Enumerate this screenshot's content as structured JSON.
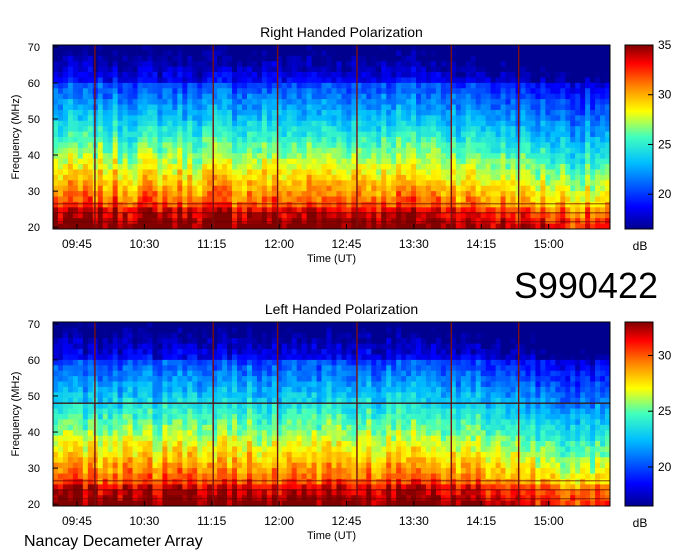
{
  "station_label": "Nancay Decameter Array",
  "event_id": "S990422",
  "chart_data": [
    {
      "type": "heatmap",
      "title": "Right Handed Polarization",
      "xlabel": "Time (UT)",
      "ylabel": "Frequency (MHz)",
      "x_ticks": [
        "09:45",
        "10:30",
        "11:15",
        "12:00",
        "12:45",
        "13:30",
        "14:15",
        "15:00"
      ],
      "x_tick_minutes": [
        585,
        630,
        675,
        720,
        765,
        810,
        855,
        900
      ],
      "x_range_minutes": [
        569,
        941
      ],
      "y_ticks": [
        20,
        30,
        40,
        50,
        60,
        70
      ],
      "ylim": [
        19.5,
        70.5
      ],
      "colorbar": {
        "label": "dB",
        "ticks": [
          20,
          25,
          30,
          35
        ],
        "range": [
          16.5,
          35
        ]
      },
      "colormap": [
        "#00008f",
        "#0000ff",
        "#00bfff",
        "#40ffbf",
        "#ffff00",
        "#ff8000",
        "#ff0000",
        "#800000"
      ],
      "vertical_markers_minutes": [
        597,
        676,
        719,
        772,
        835,
        880
      ]
    },
    {
      "type": "heatmap",
      "title": "Left Handed Polarization",
      "xlabel": "Time (UT)",
      "ylabel": "Frequency (MHz)",
      "x_ticks": [
        "09:45",
        "10:30",
        "11:15",
        "12:00",
        "12:45",
        "13:30",
        "14:15",
        "15:00"
      ],
      "x_tick_minutes": [
        585,
        630,
        675,
        720,
        765,
        810,
        855,
        900
      ],
      "x_range_minutes": [
        569,
        941
      ],
      "y_ticks": [
        20,
        30,
        40,
        50,
        60,
        70
      ],
      "ylim": [
        19.5,
        70.5
      ],
      "colorbar": {
        "label": "dB",
        "ticks": [
          20,
          25,
          30
        ],
        "range": [
          16.5,
          33
        ]
      },
      "colormap": [
        "#00008f",
        "#0000ff",
        "#00bfff",
        "#40ffbf",
        "#ffff00",
        "#ff8000",
        "#ff0000",
        "#800000"
      ],
      "vertical_markers_minutes": [
        597,
        676,
        719,
        772,
        835,
        880
      ],
      "horizontal_markers_mhz": [
        48
      ]
    }
  ]
}
